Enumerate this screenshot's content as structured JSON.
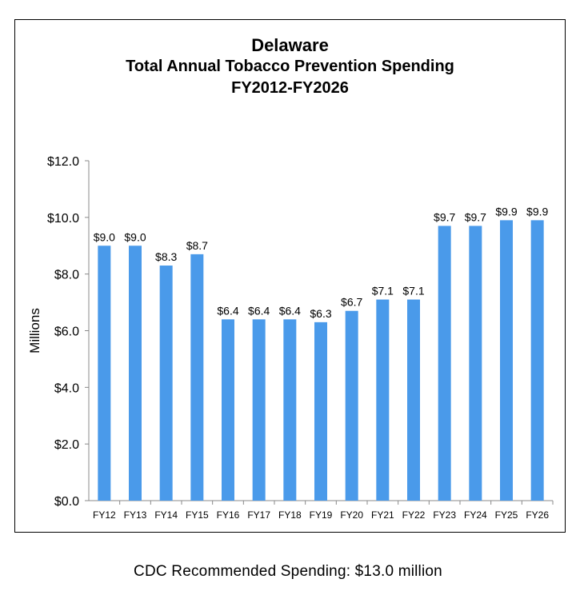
{
  "chart_data": {
    "type": "bar",
    "title": "Delaware",
    "subtitle_lines": [
      "Total Annual Tobacco Prevention Spending",
      "FY2012-FY2026"
    ],
    "xlabel": "",
    "ylabel": "Millions",
    "categories": [
      "FY12",
      "FY13",
      "FY14",
      "FY15",
      "FY16",
      "FY17",
      "FY18",
      "FY19",
      "FY20",
      "FY21",
      "FY22",
      "FY23",
      "FY24",
      "FY25",
      "FY26"
    ],
    "values": [
      9.0,
      9.0,
      8.3,
      8.7,
      6.4,
      6.4,
      6.4,
      6.3,
      6.7,
      7.1,
      7.1,
      9.7,
      9.7,
      9.9,
      9.9
    ],
    "data_labels": [
      "$9.0",
      "$9.0",
      "$8.3",
      "$8.7",
      "$6.4",
      "$6.4",
      "$6.4",
      "$6.3",
      "$6.7",
      "$7.1",
      "$7.1",
      "$9.7",
      "$9.7",
      "$9.9",
      "$9.9"
    ],
    "yticks": [
      0,
      2,
      4,
      6,
      8,
      10,
      12
    ],
    "ytick_labels": [
      "$0.0",
      "$2.0",
      "$4.0",
      "$6.0",
      "$8.0",
      "$10.0",
      "$12.0"
    ],
    "ylim": [
      0,
      12
    ],
    "grid": false,
    "legend": "none",
    "bar_color": "#4a9aea"
  },
  "footnote": "CDC Recommended Spending: $13.0 million"
}
